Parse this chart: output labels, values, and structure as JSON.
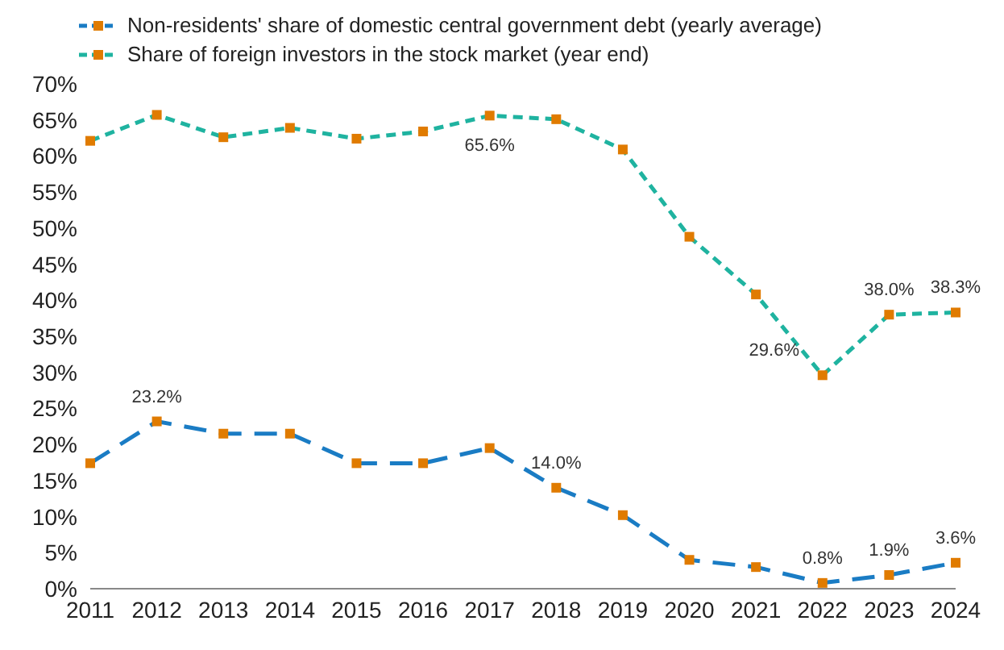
{
  "chart_data": {
    "type": "line",
    "categories": [
      "2011",
      "2012",
      "2013",
      "2014",
      "2015",
      "2016",
      "2017",
      "2018",
      "2019",
      "2020",
      "2021",
      "2022",
      "2023",
      "2024"
    ],
    "series": [
      {
        "name": "Non-residents' share of domestic central government debt (yearly average)",
        "color": "#1a7cc4",
        "line_style": "dashed",
        "values": [
          17.4,
          23.2,
          21.5,
          21.5,
          17.4,
          17.4,
          19.5,
          14.0,
          10.2,
          4.0,
          3.0,
          0.8,
          1.9,
          3.6
        ],
        "value_labels": [
          null,
          "23.2%",
          null,
          null,
          null,
          null,
          null,
          "14.0%",
          null,
          null,
          null,
          "0.8%",
          "1.9%",
          "3.6%"
        ]
      },
      {
        "name": "Share of foreign investors in the stock market (year end)",
        "color": "#1fb3a0",
        "line_style": "dotted",
        "values": [
          62.1,
          65.7,
          62.6,
          63.9,
          62.4,
          63.4,
          65.6,
          65.1,
          60.9,
          48.8,
          40.8,
          29.6,
          38.0,
          38.3
        ],
        "value_labels": [
          null,
          null,
          null,
          null,
          null,
          null,
          "65.6%",
          null,
          null,
          null,
          null,
          "29.6%",
          "38.0%",
          "38.3%"
        ]
      }
    ],
    "ylim": [
      0,
      70
    ],
    "yticks": [
      {
        "value": 0,
        "label": "0%"
      },
      {
        "value": 5,
        "label": "5%"
      },
      {
        "value": 10,
        "label": "10%"
      },
      {
        "value": 15,
        "label": "15%"
      },
      {
        "value": 20,
        "label": "20%"
      },
      {
        "value": 25,
        "label": "25%"
      },
      {
        "value": 30,
        "label": "30%"
      },
      {
        "value": 35,
        "label": "35%"
      },
      {
        "value": 40,
        "label": "40%"
      },
      {
        "value": 45,
        "label": "45%"
      },
      {
        "value": 50,
        "label": "50%"
      },
      {
        "value": 55,
        "label": "55%"
      },
      {
        "value": 60,
        "label": "60%"
      },
      {
        "value": 65,
        "label": "65%"
      },
      {
        "value": 70,
        "label": "70%"
      }
    ],
    "grid": false,
    "legend": "top left",
    "marker": "square"
  }
}
